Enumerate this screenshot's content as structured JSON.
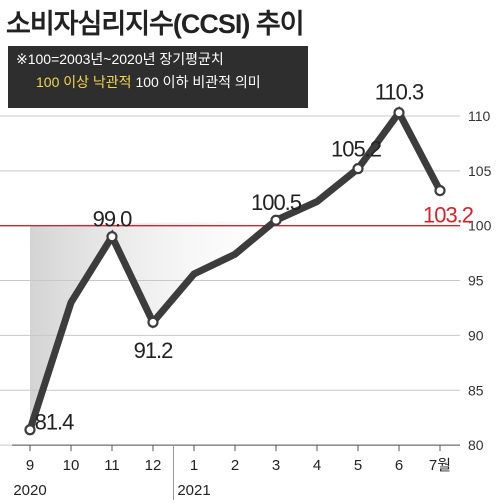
{
  "title": "소비자심리지수(CCSI) 추이",
  "note": {
    "line1": "※100=2003년~2020년 장기평균치",
    "line2_highlight": "100 이상 낙관적",
    "line2_rest": "100 이하 비관적 의미"
  },
  "colors": {
    "line": "#3c3c3c",
    "reference": "#d6232a",
    "highlight": "#d6232a",
    "area": "#cfcfcf"
  },
  "chart_data": {
    "type": "line",
    "title": "소비자심리지수(CCSI) 추이",
    "x": [
      "9",
      "10",
      "11",
      "12",
      "1",
      "2",
      "3",
      "4",
      "5",
      "6",
      "7월"
    ],
    "year_labels": [
      {
        "label": "2020",
        "at_index": 0
      },
      {
        "label": "2021",
        "at_index": 4
      }
    ],
    "series": [
      {
        "values": [
          81.4,
          93.0,
          99.0,
          91.2,
          95.6,
          97.4,
          100.5,
          102.2,
          105.2,
          110.3,
          103.2
        ],
        "point_labels": [
          {
            "index": 0,
            "text": "81.4"
          },
          {
            "index": 2,
            "text": "99.0"
          },
          {
            "index": 3,
            "text": "91.2"
          },
          {
            "index": 6,
            "text": "100.5"
          },
          {
            "index": 8,
            "text": "105.2"
          },
          {
            "index": 9,
            "text": "110.3"
          },
          {
            "index": 10,
            "text": "103.2",
            "highlight": true
          }
        ]
      }
    ],
    "yticks": [
      80,
      85,
      90,
      95,
      100,
      105,
      110
    ],
    "ylim": [
      80,
      112
    ],
    "reference_line": 100,
    "y_axis_side": "right",
    "grid": true,
    "markers_on": [
      0,
      2,
      3,
      6,
      8,
      9,
      10
    ]
  }
}
